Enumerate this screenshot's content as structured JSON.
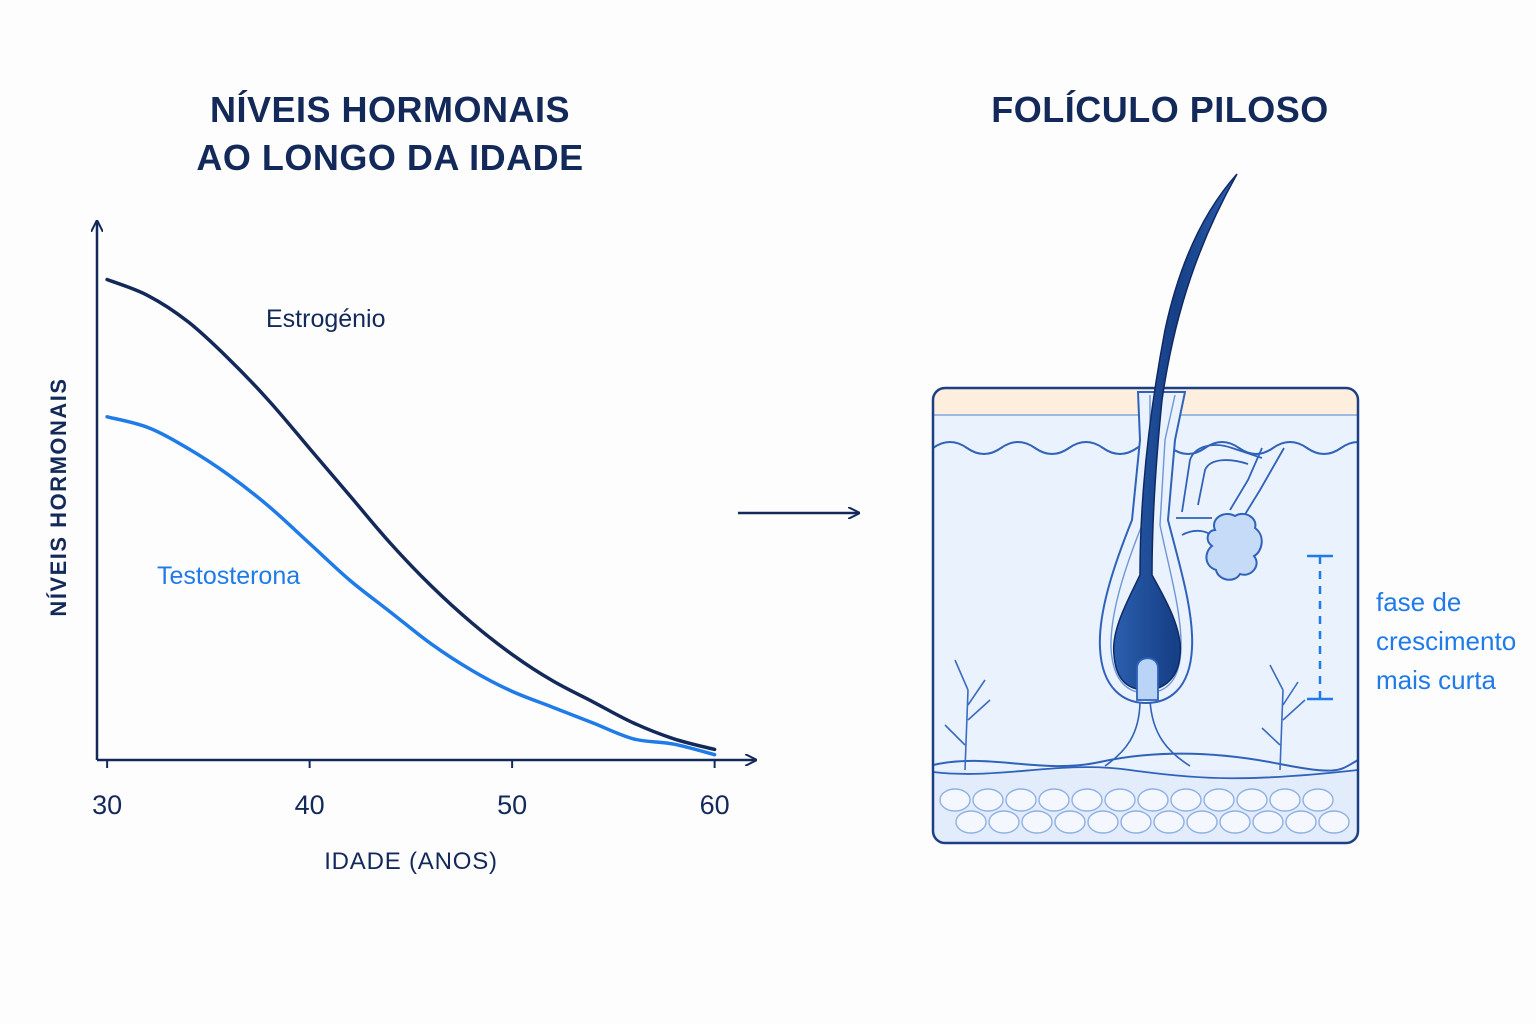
{
  "chart_title_line1": "NÍVEIS HORMONAIS",
  "chart_title_line2": "AO LONGO DA IDADE",
  "follicle_title": "FOLÍCULO PILOSO",
  "colors": {
    "navy": "#13295a",
    "blue": "#1f7be8",
    "skin_top": "#fdeede",
    "dermis": "#eaf2fd",
    "hair": "#1d4c97"
  },
  "chart_data": {
    "type": "line",
    "title": "NÍVEIS HORMONAIS AO LONGO DA IDADE",
    "xlabel": "IDADE (ANOS)",
    "ylabel": "NÍVEIS HORMONAIS",
    "x_ticks": [
      30,
      40,
      50,
      60
    ],
    "xlim": [
      29.5,
      61.5
    ],
    "ylim": [
      0,
      100
    ],
    "grid": false,
    "series": [
      {
        "name": "Estrogénio",
        "color": "#13295a",
        "x": [
          30,
          32,
          34,
          36,
          38,
          40,
          42,
          44,
          46,
          48,
          50,
          52,
          54,
          56,
          58,
          60
        ],
        "y": [
          91,
          88,
          83,
          76,
          68,
          59,
          50,
          41,
          33,
          26,
          20,
          15,
          11,
          7,
          4,
          2
        ]
      },
      {
        "name": "Testosterona",
        "color": "#1f7be8",
        "x": [
          30,
          32,
          34,
          36,
          38,
          40,
          42,
          44,
          46,
          48,
          50,
          52,
          54,
          56,
          58,
          60
        ],
        "y": [
          65,
          63,
          59,
          54,
          48,
          41,
          34,
          28,
          22,
          17,
          13,
          10,
          7,
          4,
          3,
          1
        ]
      }
    ]
  },
  "follicle": {
    "annotation_lines": [
      "fase de",
      "crescimento",
      "mais curta"
    ]
  }
}
